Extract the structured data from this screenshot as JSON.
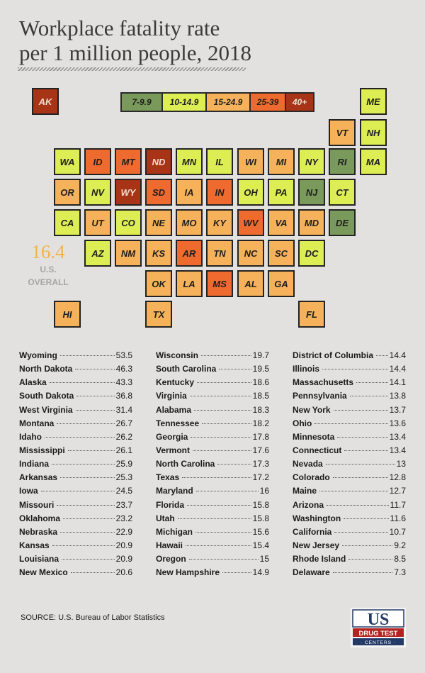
{
  "title": {
    "line1": "Workplace fatality rate",
    "line2": "per 1 million people, 2018"
  },
  "legend": [
    {
      "label": "7-9.9",
      "color": "#7a9a5c",
      "dark": false
    },
    {
      "label": "10-14.9",
      "color": "#ddee55",
      "dark": false
    },
    {
      "label": "15-24.9",
      "color": "#f6b25a",
      "dark": false
    },
    {
      "label": "25-39",
      "color": "#ee6a2e",
      "dark": false
    },
    {
      "label": "40+",
      "color": "#a73417",
      "dark": true
    }
  ],
  "overall": {
    "value": "16.4",
    "label1": "U.S.",
    "label2": "OVERALL"
  },
  "states": [
    {
      "abbr": "AK",
      "row": 0,
      "col": 0,
      "cat": 4
    },
    {
      "abbr": "ME",
      "row": 0,
      "col": 11,
      "cat": 1
    },
    {
      "abbr": "VT",
      "row": 1,
      "col": 10,
      "cat": 2
    },
    {
      "abbr": "NH",
      "row": 1,
      "col": 11,
      "cat": 1
    },
    {
      "abbr": "WA",
      "row": 2,
      "col": 1,
      "cat": 1
    },
    {
      "abbr": "ID",
      "row": 2,
      "col": 2,
      "cat": 3
    },
    {
      "abbr": "MT",
      "row": 2,
      "col": 3,
      "cat": 3
    },
    {
      "abbr": "ND",
      "row": 2,
      "col": 4,
      "cat": 4
    },
    {
      "abbr": "MN",
      "row": 2,
      "col": 5,
      "cat": 1
    },
    {
      "abbr": "IL",
      "row": 2,
      "col": 6,
      "cat": 1
    },
    {
      "abbr": "WI",
      "row": 2,
      "col": 7,
      "cat": 2
    },
    {
      "abbr": "MI",
      "row": 2,
      "col": 8,
      "cat": 2
    },
    {
      "abbr": "NY",
      "row": 2,
      "col": 9,
      "cat": 1
    },
    {
      "abbr": "RI",
      "row": 2,
      "col": 10,
      "cat": 0
    },
    {
      "abbr": "MA",
      "row": 2,
      "col": 11,
      "cat": 1
    },
    {
      "abbr": "OR",
      "row": 3,
      "col": 1,
      "cat": 2
    },
    {
      "abbr": "NV",
      "row": 3,
      "col": 2,
      "cat": 1
    },
    {
      "abbr": "WY",
      "row": 3,
      "col": 3,
      "cat": 4
    },
    {
      "abbr": "SD",
      "row": 3,
      "col": 4,
      "cat": 3
    },
    {
      "abbr": "IA",
      "row": 3,
      "col": 5,
      "cat": 2
    },
    {
      "abbr": "IN",
      "row": 3,
      "col": 6,
      "cat": 3
    },
    {
      "abbr": "OH",
      "row": 3,
      "col": 7,
      "cat": 1
    },
    {
      "abbr": "PA",
      "row": 3,
      "col": 8,
      "cat": 1
    },
    {
      "abbr": "NJ",
      "row": 3,
      "col": 9,
      "cat": 0
    },
    {
      "abbr": "CT",
      "row": 3,
      "col": 10,
      "cat": 1
    },
    {
      "abbr": "CA",
      "row": 4,
      "col": 1,
      "cat": 1
    },
    {
      "abbr": "UT",
      "row": 4,
      "col": 2,
      "cat": 2
    },
    {
      "abbr": "CO",
      "row": 4,
      "col": 3,
      "cat": 1
    },
    {
      "abbr": "NE",
      "row": 4,
      "col": 4,
      "cat": 2
    },
    {
      "abbr": "MO",
      "row": 4,
      "col": 5,
      "cat": 2
    },
    {
      "abbr": "KY",
      "row": 4,
      "col": 6,
      "cat": 2
    },
    {
      "abbr": "WV",
      "row": 4,
      "col": 7,
      "cat": 3
    },
    {
      "abbr": "VA",
      "row": 4,
      "col": 8,
      "cat": 2
    },
    {
      "abbr": "MD",
      "row": 4,
      "col": 9,
      "cat": 2
    },
    {
      "abbr": "DE",
      "row": 4,
      "col": 10,
      "cat": 0
    },
    {
      "abbr": "AZ",
      "row": 5,
      "col": 2,
      "cat": 1
    },
    {
      "abbr": "NM",
      "row": 5,
      "col": 3,
      "cat": 2
    },
    {
      "abbr": "KS",
      "row": 5,
      "col": 4,
      "cat": 2
    },
    {
      "abbr": "AR",
      "row": 5,
      "col": 5,
      "cat": 3
    },
    {
      "abbr": "TN",
      "row": 5,
      "col": 6,
      "cat": 2
    },
    {
      "abbr": "NC",
      "row": 5,
      "col": 7,
      "cat": 2
    },
    {
      "abbr": "SC",
      "row": 5,
      "col": 8,
      "cat": 2
    },
    {
      "abbr": "DC",
      "row": 5,
      "col": 9,
      "cat": 1
    },
    {
      "abbr": "OK",
      "row": 6,
      "col": 4,
      "cat": 2
    },
    {
      "abbr": "LA",
      "row": 6,
      "col": 5,
      "cat": 2
    },
    {
      "abbr": "MS",
      "row": 6,
      "col": 6,
      "cat": 3
    },
    {
      "abbr": "AL",
      "row": 6,
      "col": 7,
      "cat": 2
    },
    {
      "abbr": "GA",
      "row": 6,
      "col": 8,
      "cat": 2
    },
    {
      "abbr": "HI",
      "row": 7,
      "col": 1,
      "cat": 2
    },
    {
      "abbr": "TX",
      "row": 7,
      "col": 4,
      "cat": 2
    },
    {
      "abbr": "FL",
      "row": 7,
      "col": 9,
      "cat": 2
    }
  ],
  "rankings": [
    [
      {
        "name": "Wyoming",
        "value": "53.5"
      },
      {
        "name": "North Dakota",
        "value": "46.3"
      },
      {
        "name": "Alaska",
        "value": "43.3"
      },
      {
        "name": "South Dakota",
        "value": "36.8"
      },
      {
        "name": "West Virginia",
        "value": "31.4"
      },
      {
        "name": "Montana",
        "value": "26.7"
      },
      {
        "name": "Idaho",
        "value": "26.2"
      },
      {
        "name": "Mississippi",
        "value": "26.1"
      },
      {
        "name": "Indiana",
        "value": "25.9"
      },
      {
        "name": "Arkansas",
        "value": "25.3"
      },
      {
        "name": "Iowa",
        "value": "24.5"
      },
      {
        "name": "Missouri",
        "value": "23.7"
      },
      {
        "name": "Oklahoma",
        "value": "23.2"
      },
      {
        "name": "Nebraska",
        "value": "22.9"
      },
      {
        "name": "Kansas",
        "value": "20.9"
      },
      {
        "name": "Louisiana",
        "value": "20.9"
      },
      {
        "name": "New Mexico",
        "value": "20.6"
      }
    ],
    [
      {
        "name": "Wisconsin",
        "value": "19.7"
      },
      {
        "name": "South Carolina",
        "value": "19.5"
      },
      {
        "name": "Kentucky",
        "value": "18.6"
      },
      {
        "name": "Virginia",
        "value": "18.5"
      },
      {
        "name": "Alabama",
        "value": "18.3"
      },
      {
        "name": "Tennessee",
        "value": "18.2"
      },
      {
        "name": "Georgia",
        "value": "17.8"
      },
      {
        "name": "Vermont",
        "value": "17.6"
      },
      {
        "name": "North Carolina",
        "value": "17.3"
      },
      {
        "name": "Texas",
        "value": "17.2"
      },
      {
        "name": "Maryland",
        "value": "16"
      },
      {
        "name": "Florida",
        "value": "15.8"
      },
      {
        "name": "Utah",
        "value": "15.8"
      },
      {
        "name": "Michigan",
        "value": "15.6"
      },
      {
        "name": "Hawaii",
        "value": "15.4"
      },
      {
        "name": "Oregon",
        "value": "15"
      },
      {
        "name": "New Hampshire",
        "value": "14.9"
      }
    ],
    [
      {
        "name": "District of Columbia",
        "value": "14.4"
      },
      {
        "name": "Illinois",
        "value": "14.4"
      },
      {
        "name": "Massachusetts",
        "value": "14.1"
      },
      {
        "name": "Pennsylvania",
        "value": "13.8"
      },
      {
        "name": "New York",
        "value": "13.7"
      },
      {
        "name": "Ohio",
        "value": "13.6"
      },
      {
        "name": "Minnesota",
        "value": "13.4"
      },
      {
        "name": "Connecticut",
        "value": "13.4"
      },
      {
        "name": "Nevada",
        "value": "13"
      },
      {
        "name": "Colorado",
        "value": "12.8"
      },
      {
        "name": "Maine",
        "value": "12.7"
      },
      {
        "name": "Arizona",
        "value": "11.7"
      },
      {
        "name": "Washington",
        "value": "11.6"
      },
      {
        "name": "California",
        "value": "10.7"
      },
      {
        "name": "New Jersey",
        "value": "9.2"
      },
      {
        "name": "Rhode Island",
        "value": "8.5"
      },
      {
        "name": "Delaware",
        "value": "7.3"
      }
    ]
  ],
  "source": "SOURCE: U.S. Bureau of Labor Statistics",
  "logo": {
    "line1": "US",
    "line2": "DRUG TEST",
    "line3": "CENTERS",
    "red": "#b3241f",
    "navy": "#233a66"
  }
}
